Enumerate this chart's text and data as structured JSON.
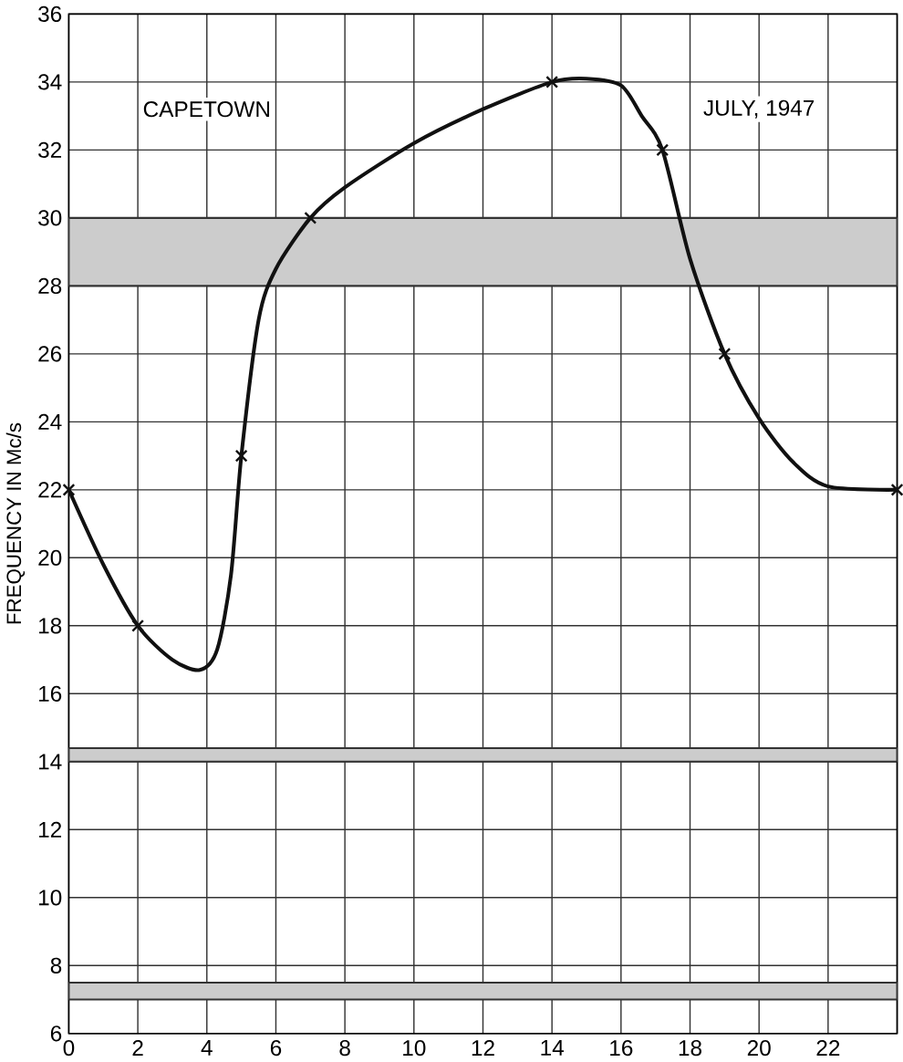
{
  "chart_data": {
    "type": "line",
    "ylabel": "FREQUENCY IN Mc/s",
    "annotations": [
      "CAPETOWN",
      "JULY, 1947"
    ],
    "xlim": [
      0,
      24
    ],
    "xticks": [
      0,
      2,
      4,
      6,
      8,
      10,
      12,
      14,
      16,
      18,
      20,
      22,
      {
        "value": 24,
        "label": null
      }
    ],
    "ylim": [
      6,
      36
    ],
    "yticks": [
      6,
      8,
      10,
      12,
      14,
      16,
      18,
      20,
      22,
      24,
      26,
      28,
      30,
      32,
      34,
      36
    ],
    "grid": true,
    "series": [
      {
        "color": "#111111",
        "marker": "none",
        "x": [
          0,
          1,
          2,
          3,
          3.8,
          4.3,
          4.7,
          5,
          5.5,
          6,
          7,
          8,
          10,
          12,
          14,
          15,
          16,
          16.6,
          17.2,
          18,
          19,
          20,
          21,
          22,
          24
        ],
        "values": [
          22,
          19.8,
          18,
          17,
          16.7,
          17.3,
          19.5,
          23,
          27,
          28.5,
          30,
          30.9,
          32.2,
          33.2,
          34,
          34.1,
          33.9,
          33,
          32,
          28.8,
          26,
          24.1,
          22.8,
          22.1,
          22
        ]
      },
      {
        "type": "scatter",
        "color": "#111111",
        "marker": "cross",
        "x": [
          0,
          2,
          5,
          7,
          14,
          17.2,
          19,
          24
        ],
        "values": [
          22,
          18,
          23,
          30,
          34,
          32,
          26,
          22
        ]
      }
    ],
    "bands": [
      {
        "axis": "y",
        "from": 28,
        "to": 30,
        "color": "#cccccc"
      },
      {
        "axis": "y",
        "from": 14,
        "to": 14.4,
        "color": "#cccccc"
      },
      {
        "axis": "y",
        "from": 7,
        "to": 7.5,
        "color": "#cccccc"
      }
    ]
  }
}
